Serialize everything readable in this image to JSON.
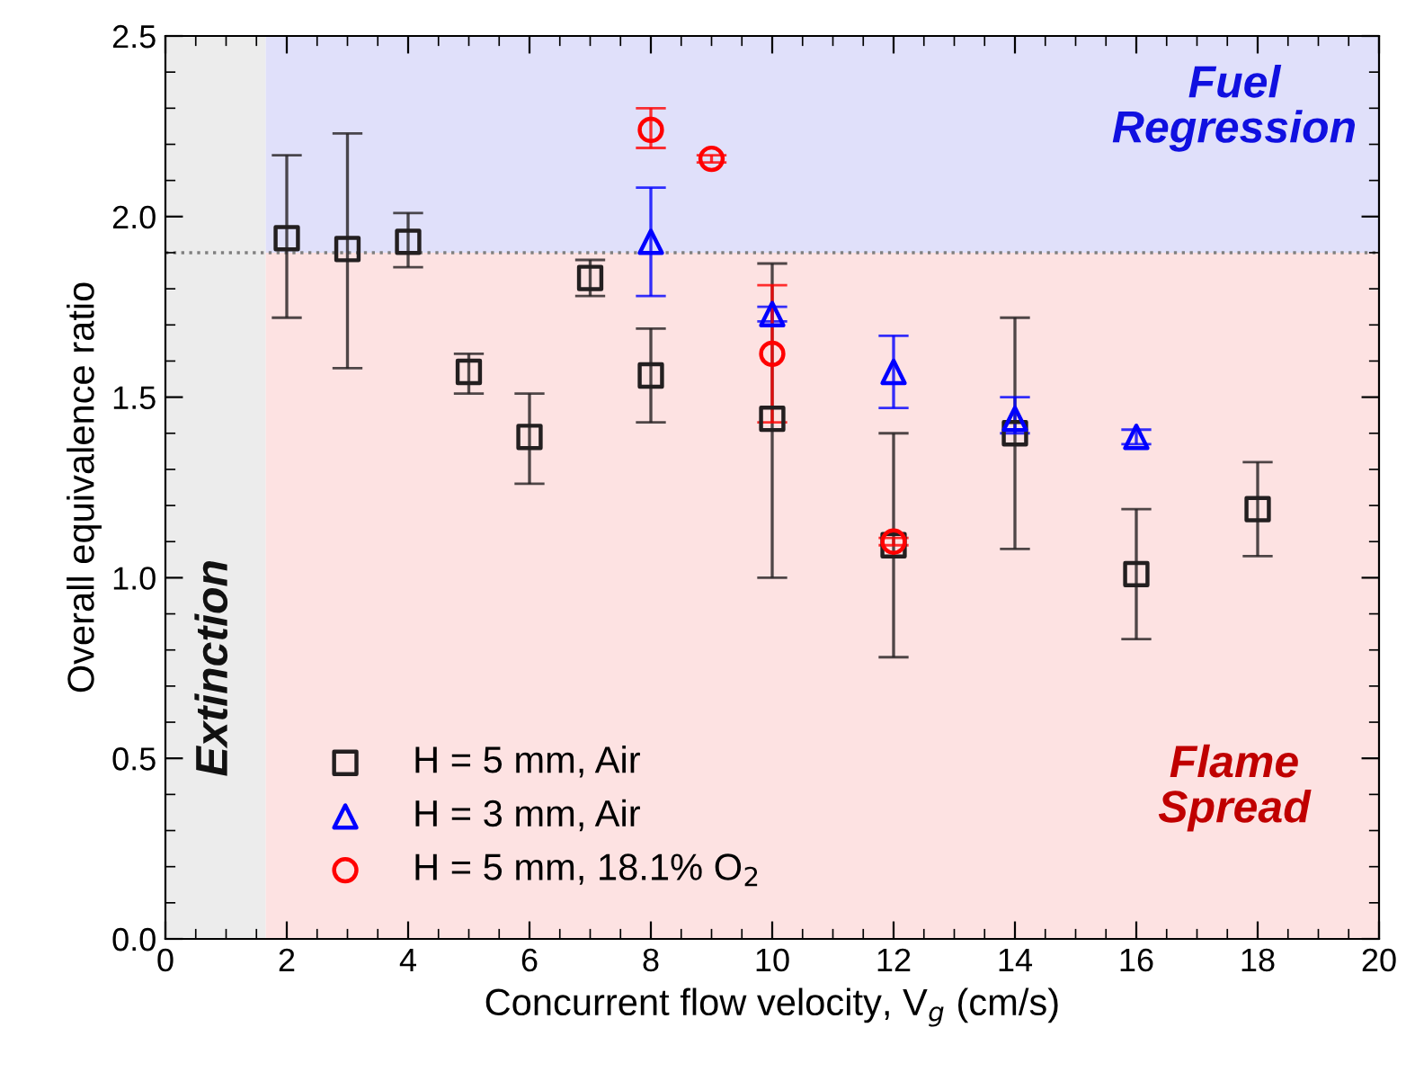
{
  "chart_data": {
    "type": "scatter",
    "xlabel": "Concurrent flow velocity, V$_{g}$ (cm/s)",
    "ylabel": "Overall equivalence ratio",
    "xlim": [
      0,
      20
    ],
    "xticks": [
      0,
      2,
      4,
      6,
      8,
      10,
      12,
      14,
      16,
      18,
      20
    ],
    "ylim": [
      0,
      2.5
    ],
    "yticks": [
      {
        "value": 0,
        "label": "0.0"
      },
      0.5,
      {
        "value": 1,
        "label": "1.0"
      },
      1.5,
      {
        "value": 2,
        "label": "2.0"
      },
      2.5
    ],
    "series": [
      {
        "name": "H = 5 mm, Air",
        "color": "#231f20",
        "marker": "square",
        "x": [
          2,
          3,
          4,
          5,
          6,
          7,
          8,
          10,
          12,
          14,
          16,
          18
        ],
        "values": [
          1.94,
          1.91,
          1.93,
          1.57,
          1.39,
          1.83,
          1.56,
          1.44,
          1.09,
          1.4,
          1.01,
          1.19
        ],
        "errors": [
          [
            1.72,
            2.17
          ],
          [
            1.58,
            2.23
          ],
          [
            1.86,
            2.01
          ],
          [
            1.51,
            1.62
          ],
          [
            1.26,
            1.51
          ],
          [
            1.78,
            1.88
          ],
          [
            1.43,
            1.69
          ],
          [
            1.0,
            1.87
          ],
          [
            0.78,
            1.4
          ],
          [
            1.08,
            1.72
          ],
          [
            0.83,
            1.19
          ],
          [
            1.06,
            1.32
          ]
        ]
      },
      {
        "name": "H = 3 mm, Air",
        "color": "#0000ff",
        "marker": "triangle",
        "x": [
          8,
          10,
          12,
          14,
          16
        ],
        "values": [
          1.93,
          1.73,
          1.57,
          1.44,
          1.39
        ],
        "errors": [
          [
            1.78,
            2.08
          ],
          [
            1.71,
            1.75
          ],
          [
            1.47,
            1.67
          ],
          [
            1.4,
            1.5
          ],
          [
            1.37,
            1.41
          ]
        ]
      },
      {
        "name": "H = 5 mm, 18.1% O$_{2}$",
        "color": "#ff0000",
        "marker": "circle",
        "x": [
          8,
          9,
          10,
          12
        ],
        "values": [
          2.24,
          2.16,
          1.62,
          1.1
        ],
        "errors": [
          [
            2.19,
            2.3
          ],
          [
            2.15,
            2.17
          ],
          [
            1.43,
            1.81
          ],
          [
            1.09,
            1.11
          ]
        ]
      }
    ],
    "ref_lines": [
      {
        "axis": "y",
        "value": 1.9,
        "color": "#808080",
        "line_style": "dotted"
      }
    ],
    "bands": [
      {
        "axis": "y",
        "from": 1.9,
        "to": 2.5,
        "label": "Fuel\nRegression",
        "color": "#e0e0fa"
      },
      {
        "axis": "y",
        "from": 0,
        "to": 1.9,
        "label": "Flame\nSpread",
        "color": "#fde2e2"
      },
      {
        "axis": "x",
        "from": 0,
        "to": 1.65,
        "label": "Extinction",
        "color": "#ececec"
      }
    ],
    "legend": "bottom left",
    "grid": false
  }
}
